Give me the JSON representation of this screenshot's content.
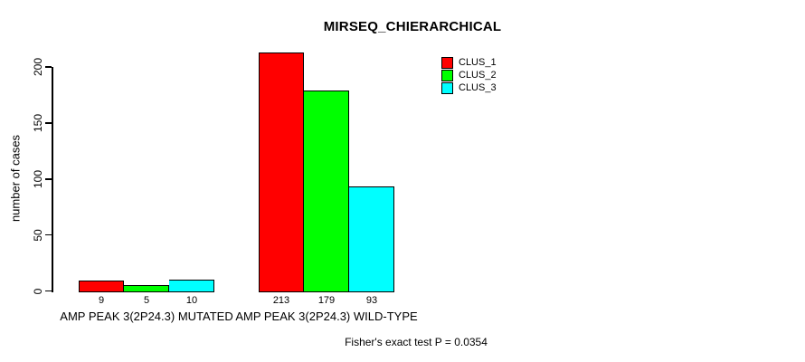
{
  "chart_data": {
    "type": "bar",
    "title": "MIRSEQ_CHIERARCHICAL",
    "ylabel": "number of cases",
    "xlabel": "",
    "categories": [
      "AMP PEAK 3(2P24.3) MUTATED",
      "AMP PEAK 3(2P24.3) WILD-TYPE"
    ],
    "series": [
      {
        "name": "CLUS_1",
        "color": "#ff0000",
        "values": [
          9,
          213
        ]
      },
      {
        "name": "CLUS_2",
        "color": "#00ff00",
        "values": [
          5,
          179
        ]
      },
      {
        "name": "CLUS_3",
        "color": "#00ffff",
        "values": [
          10,
          93
        ]
      }
    ],
    "yticks": [
      0,
      50,
      100,
      150,
      200
    ],
    "ylim": [
      0,
      213
    ],
    "bar_value_labels": [
      [
        9,
        5,
        10
      ],
      [
        213,
        179,
        93
      ]
    ],
    "grid": false,
    "legend_position": "top-right",
    "annotation": "Fisher's exact test P = 0.0354"
  },
  "colors": {
    "background": "#ffffff",
    "axis": "#000000",
    "clus_1": "#ff0000",
    "clus_2": "#00ff00",
    "clus_3": "#00ffff"
  }
}
